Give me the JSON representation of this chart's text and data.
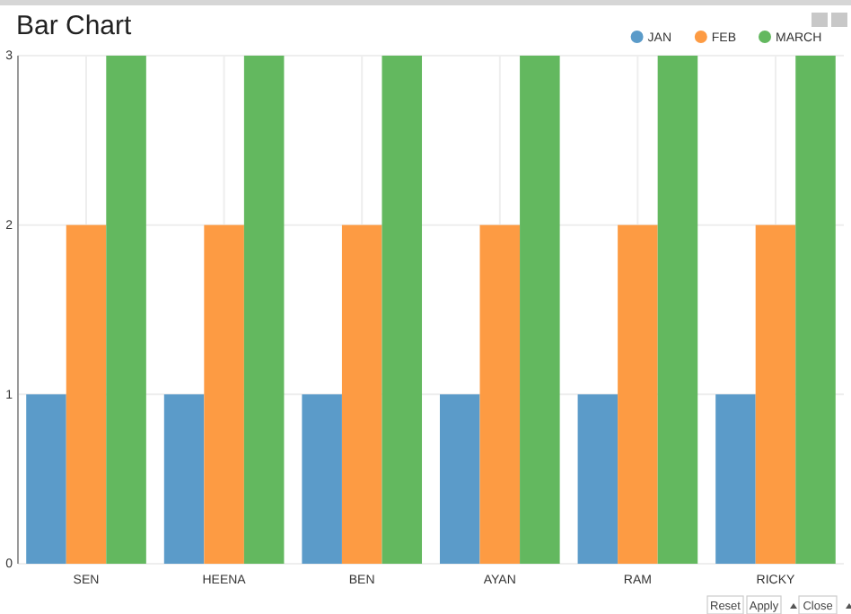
{
  "chart_data": {
    "type": "bar",
    "title": "Bar Chart",
    "categories": [
      "SEN",
      "HEENA",
      "BEN",
      "AYAN",
      "RAM",
      "RICKY"
    ],
    "series": [
      {
        "name": "JAN",
        "color": "#5b9bc9",
        "values": [
          1,
          1,
          1,
          1,
          1,
          1
        ]
      },
      {
        "name": "FEB",
        "color": "#fd9b43",
        "values": [
          2,
          2,
          2,
          2,
          2,
          2
        ]
      },
      {
        "name": "MARCH",
        "color": "#63b85f",
        "values": [
          3,
          3,
          3,
          3,
          3,
          3
        ]
      }
    ],
    "ylim": [
      0,
      3
    ],
    "yticks": [
      0,
      1,
      2,
      3
    ],
    "grid": true,
    "legend": "top right",
    "annotations": [
      "Reset",
      "Apply",
      "Close"
    ]
  }
}
